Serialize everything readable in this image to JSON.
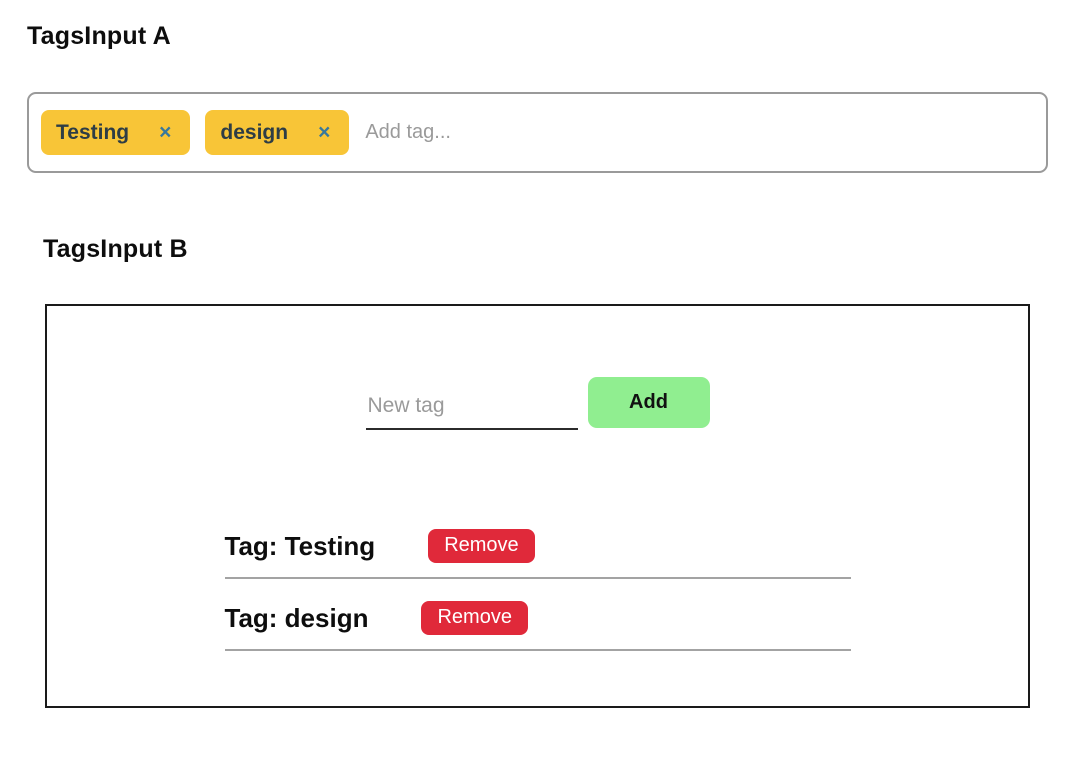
{
  "section_a": {
    "title": "TagsInput A",
    "tags": [
      {
        "label": "Testing",
        "remove_icon": "×"
      },
      {
        "label": "design",
        "remove_icon": "×"
      }
    ],
    "input_placeholder": "Add tag...",
    "colors": {
      "chip_background": "#f8c537",
      "chip_text": "#2e3d45",
      "chip_remove_icon": "#38789c",
      "container_border": "#9a9a9a",
      "placeholder_text": "#9a9a9a"
    }
  },
  "section_b": {
    "title": "TagsInput B",
    "form": {
      "input_placeholder": "New tag",
      "add_button_label": "Add"
    },
    "rows": [
      {
        "label": "Tag: Testing",
        "remove_button_label": "Remove"
      },
      {
        "label": "Tag: design",
        "remove_button_label": "Remove"
      }
    ],
    "colors": {
      "box_border": "#1a1a1a",
      "add_button_background": "#90ee90",
      "add_button_text": "#111111",
      "remove_button_background": "#e0293a",
      "remove_button_text": "#ffffff",
      "divider": "#a3a3a3"
    }
  }
}
